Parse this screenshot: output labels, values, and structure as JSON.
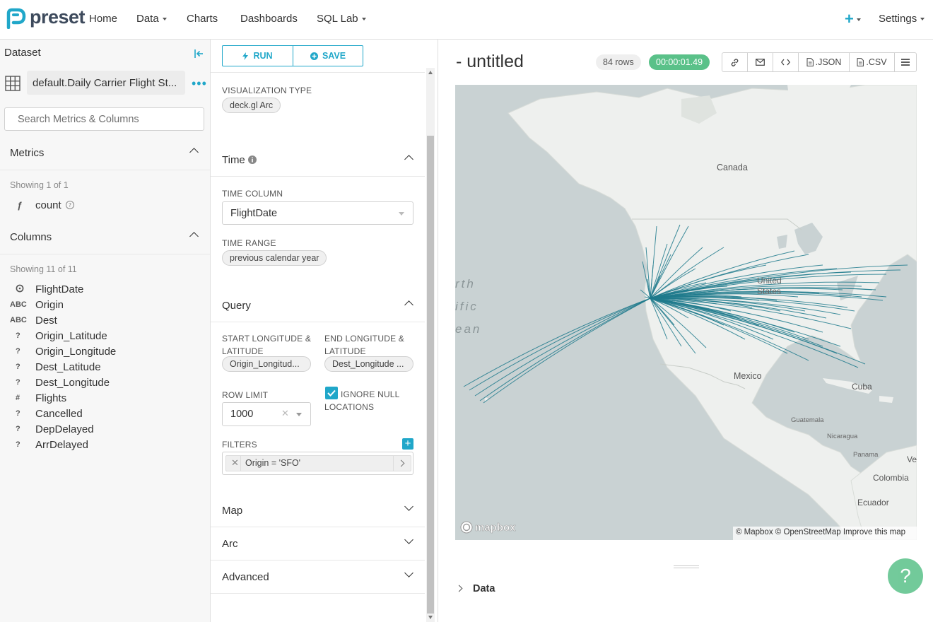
{
  "brand": {
    "name": "preset",
    "accent": "#20a7c9",
    "green": "#5ac189"
  },
  "nav": {
    "items": [
      {
        "label": "Home"
      },
      {
        "label": "Data"
      },
      {
        "label": "Charts"
      },
      {
        "label": "Dashboards"
      },
      {
        "label": "SQL Lab"
      }
    ],
    "plus_label": "+",
    "settings_label": "Settings"
  },
  "dataset": {
    "header": "Dataset",
    "name": "default.Daily Carrier Flight St...",
    "search_placeholder": "Search Metrics & Columns",
    "metrics": {
      "title": "Metrics",
      "showing": "Showing 1 of 1",
      "items": [
        {
          "type": "ƒ",
          "name": "count"
        }
      ]
    },
    "columns": {
      "title": "Columns",
      "showing": "Showing 11 of 11",
      "items": [
        {
          "type": "clock",
          "name": "FlightDate"
        },
        {
          "type": "ABC",
          "name": "Origin"
        },
        {
          "type": "ABC",
          "name": "Dest"
        },
        {
          "type": "?",
          "name": "Origin_Latitude"
        },
        {
          "type": "?",
          "name": "Origin_Longitude"
        },
        {
          "type": "?",
          "name": "Dest_Latitude"
        },
        {
          "type": "?",
          "name": "Dest_Longitude"
        },
        {
          "type": "#",
          "name": "Flights"
        },
        {
          "type": "?",
          "name": "Cancelled"
        },
        {
          "type": "?",
          "name": "DepDelayed"
        },
        {
          "type": "?",
          "name": "ArrDelayed"
        }
      ]
    }
  },
  "controls": {
    "run_label": "RUN",
    "save_label": "SAVE",
    "viz_type_label": "VISUALIZATION TYPE",
    "viz_type_value": "deck.gl Arc",
    "time": {
      "title": "Time",
      "time_column_label": "TIME COLUMN",
      "time_column_value": "FlightDate",
      "time_range_label": "TIME RANGE",
      "time_range_value": "previous calendar year"
    },
    "query": {
      "title": "Query",
      "start_label": "START LONGITUDE & LATITUDE",
      "start_value": "Origin_Longitud...",
      "end_label": "END LONGITUDE & LATITUDE",
      "end_value": "Dest_Longitude ...",
      "row_limit_label": "ROW LIMIT",
      "row_limit_value": "1000",
      "ignore_null_label": "IGNORE NULL LOCATIONS",
      "ignore_null_checked": true,
      "filters_label": "FILTERS",
      "filter_value": "Origin = 'SFO'"
    },
    "collapsed_sections": [
      {
        "title": "Map"
      },
      {
        "title": "Arc"
      },
      {
        "title": "Advanced"
      }
    ]
  },
  "chart": {
    "title": "- untitled",
    "rows_badge": "84 rows",
    "timer": "00:00:01.49",
    "json_label": ".JSON",
    "csv_label": ".CSV",
    "map_labels": {
      "canada": "Canada",
      "us": "United States",
      "mexico": "Mexico",
      "cuba": "Cuba",
      "guatemala": "Guatemala",
      "nicaragua": "Nicaragua",
      "panama": "Panama",
      "colombia": "Colombia",
      "ecuador": "Ecuador",
      "ocean1": "rth",
      "ocean2": "ific",
      "ocean3": "ean",
      "ve": "Ve"
    },
    "attribution": "© Mapbox © OpenStreetMap Improve this map",
    "mapbox_logo": "mapbox",
    "data_section": "Data",
    "arc_color": "#1f7a8c"
  },
  "help_icon": "?"
}
